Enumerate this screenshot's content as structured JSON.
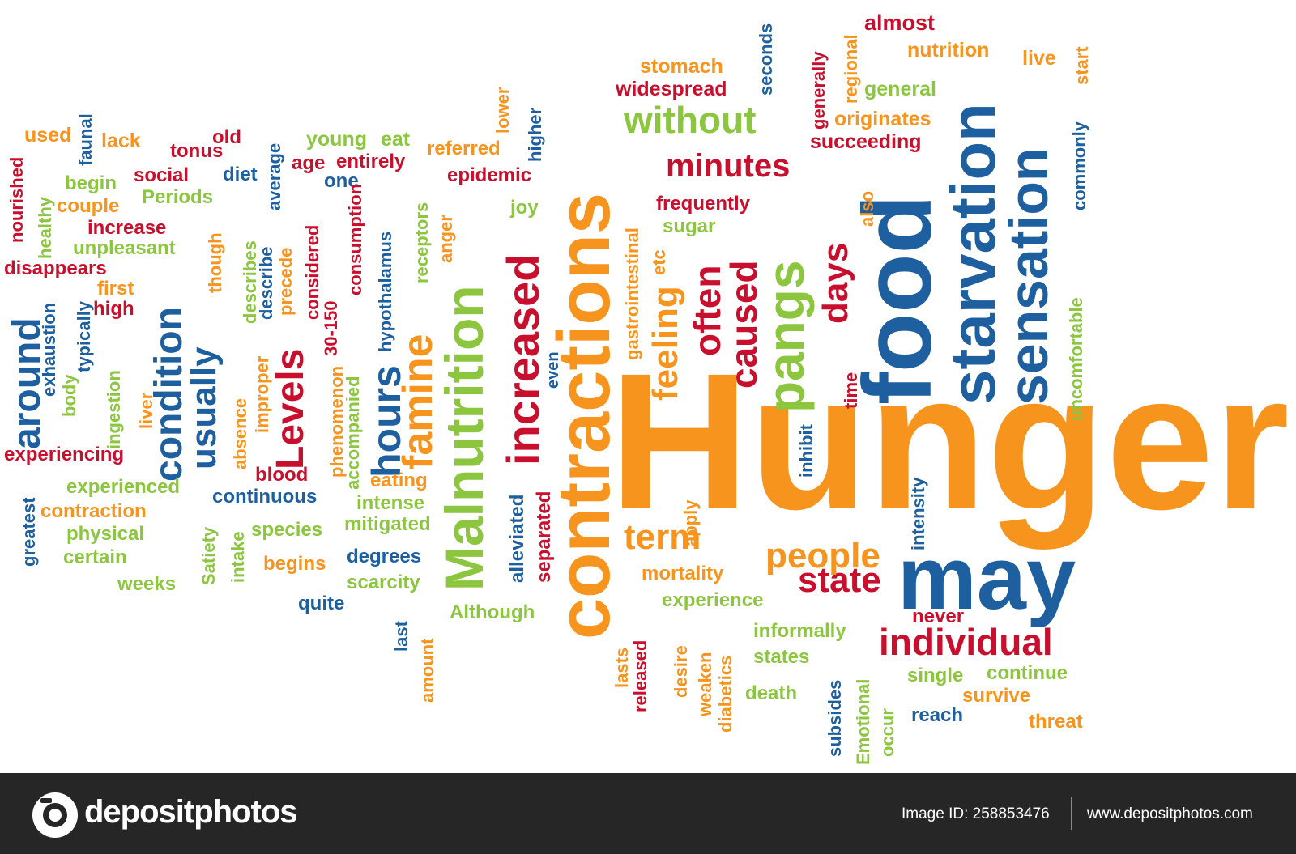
{
  "colors": {
    "orange": "#F7941D",
    "red": "#C8102E",
    "green": "#8CC63F",
    "blue": "#1E5F9F",
    "footer": "#262626"
  },
  "words": [
    {
      "t": "Hunger",
      "c": "orange"
    },
    {
      "t": "food",
      "c": "blue"
    },
    {
      "t": "may",
      "c": "blue"
    },
    {
      "t": "contractions",
      "c": "orange"
    },
    {
      "t": "Malnutrition",
      "c": "green"
    },
    {
      "t": "starvation",
      "c": "blue"
    },
    {
      "t": "sensation",
      "c": "blue"
    },
    {
      "t": "pangs",
      "c": "green"
    },
    {
      "t": "increased",
      "c": "red"
    },
    {
      "t": "famine",
      "c": "orange"
    },
    {
      "t": "hours",
      "c": "blue"
    },
    {
      "t": "Levels",
      "c": "red"
    },
    {
      "t": "condition",
      "c": "blue"
    },
    {
      "t": "usually",
      "c": "blue"
    },
    {
      "t": "around",
      "c": "blue"
    },
    {
      "t": "caused",
      "c": "red"
    },
    {
      "t": "often",
      "c": "red"
    },
    {
      "t": "feeling",
      "c": "orange"
    },
    {
      "t": "days",
      "c": "red"
    },
    {
      "t": "minutes",
      "c": "red"
    },
    {
      "t": "without",
      "c": "green"
    },
    {
      "t": "individual",
      "c": "red"
    },
    {
      "t": "state",
      "c": "red"
    },
    {
      "t": "people",
      "c": "orange"
    },
    {
      "t": "term",
      "c": "orange"
    },
    {
      "t": "almost",
      "c": "red"
    },
    {
      "t": "nutrition",
      "c": "orange"
    },
    {
      "t": "live",
      "c": "orange"
    },
    {
      "t": "general",
      "c": "green"
    },
    {
      "t": "originates",
      "c": "orange"
    },
    {
      "t": "succeeding",
      "c": "red"
    },
    {
      "t": "stomach",
      "c": "orange"
    },
    {
      "t": "widespread",
      "c": "red"
    },
    {
      "t": "frequently",
      "c": "red"
    },
    {
      "t": "sugar",
      "c": "green"
    },
    {
      "t": "epidemic",
      "c": "red"
    },
    {
      "t": "referred",
      "c": "orange"
    },
    {
      "t": "joy",
      "c": "green"
    },
    {
      "t": "young",
      "c": "green"
    },
    {
      "t": "eat",
      "c": "green"
    },
    {
      "t": "age",
      "c": "red"
    },
    {
      "t": "entirely",
      "c": "red"
    },
    {
      "t": "one",
      "c": "blue"
    },
    {
      "t": "diet",
      "c": "blue"
    },
    {
      "t": "old",
      "c": "red"
    },
    {
      "t": "tonus",
      "c": "red"
    },
    {
      "t": "social",
      "c": "red"
    },
    {
      "t": "used",
      "c": "orange"
    },
    {
      "t": "lack",
      "c": "orange"
    },
    {
      "t": "begin",
      "c": "green"
    },
    {
      "t": "couple",
      "c": "orange"
    },
    {
      "t": "Periods",
      "c": "green"
    },
    {
      "t": "increase",
      "c": "red"
    },
    {
      "t": "unpleasant",
      "c": "green"
    },
    {
      "t": "disappears",
      "c": "red"
    },
    {
      "t": "first",
      "c": "orange"
    },
    {
      "t": "high",
      "c": "red"
    },
    {
      "t": "experiencing",
      "c": "red"
    },
    {
      "t": "experienced",
      "c": "green"
    },
    {
      "t": "contraction",
      "c": "orange"
    },
    {
      "t": "physical",
      "c": "green"
    },
    {
      "t": "certain",
      "c": "green"
    },
    {
      "t": "weeks",
      "c": "green"
    },
    {
      "t": "blood",
      "c": "red"
    },
    {
      "t": "continuous",
      "c": "blue"
    },
    {
      "t": "eating",
      "c": "orange"
    },
    {
      "t": "intense",
      "c": "green"
    },
    {
      "t": "mitigated",
      "c": "green"
    },
    {
      "t": "species",
      "c": "green"
    },
    {
      "t": "begins",
      "c": "orange"
    },
    {
      "t": "degrees",
      "c": "blue"
    },
    {
      "t": "scarcity",
      "c": "green"
    },
    {
      "t": "quite",
      "c": "blue"
    },
    {
      "t": "Although",
      "c": "green"
    },
    {
      "t": "mortality",
      "c": "orange"
    },
    {
      "t": "experience",
      "c": "green"
    },
    {
      "t": "informally",
      "c": "green"
    },
    {
      "t": "states",
      "c": "green"
    },
    {
      "t": "death",
      "c": "green"
    },
    {
      "t": "never",
      "c": "red"
    },
    {
      "t": "single",
      "c": "green"
    },
    {
      "t": "continue",
      "c": "green"
    },
    {
      "t": "survive",
      "c": "orange"
    },
    {
      "t": "reach",
      "c": "blue"
    },
    {
      "t": "threat",
      "c": "orange"
    },
    {
      "t": "seconds",
      "c": "blue"
    },
    {
      "t": "generally",
      "c": "red"
    },
    {
      "t": "regional",
      "c": "orange"
    },
    {
      "t": "start",
      "c": "orange"
    },
    {
      "t": "commonly",
      "c": "blue"
    },
    {
      "t": "also",
      "c": "orange"
    },
    {
      "t": "uncomfortable",
      "c": "green"
    },
    {
      "t": "time",
      "c": "red"
    },
    {
      "t": "inhibit",
      "c": "blue"
    },
    {
      "t": "intensity",
      "c": "blue"
    },
    {
      "t": "apply",
      "c": "orange"
    },
    {
      "t": "etc",
      "c": "orange"
    },
    {
      "t": "gastrointestinal",
      "c": "orange"
    },
    {
      "t": "even",
      "c": "blue"
    },
    {
      "t": "alleviated",
      "c": "blue"
    },
    {
      "t": "separated",
      "c": "red"
    },
    {
      "t": "anger",
      "c": "orange"
    },
    {
      "t": "receptors",
      "c": "green"
    },
    {
      "t": "hypothalamus",
      "c": "blue"
    },
    {
      "t": "lower",
      "c": "orange"
    },
    {
      "t": "higher",
      "c": "blue"
    },
    {
      "t": "consumption",
      "c": "red"
    },
    {
      "t": "accompanied",
      "c": "green"
    },
    {
      "t": "30-150",
      "c": "red"
    },
    {
      "t": "phenomenon",
      "c": "orange"
    },
    {
      "t": "considered",
      "c": "red"
    },
    {
      "t": "precede",
      "c": "orange"
    },
    {
      "t": "describe",
      "c": "blue"
    },
    {
      "t": "average",
      "c": "blue"
    },
    {
      "t": "describes",
      "c": "green"
    },
    {
      "t": "improper",
      "c": "orange"
    },
    {
      "t": "absence",
      "c": "orange"
    },
    {
      "t": "intake",
      "c": "green"
    },
    {
      "t": "Satiety",
      "c": "green"
    },
    {
      "t": "though",
      "c": "orange"
    },
    {
      "t": "ingestion",
      "c": "green"
    },
    {
      "t": "liver",
      "c": "orange"
    },
    {
      "t": "typically",
      "c": "blue"
    },
    {
      "t": "body",
      "c": "green"
    },
    {
      "t": "exhaustion",
      "c": "blue"
    },
    {
      "t": "greatest",
      "c": "blue"
    },
    {
      "t": "faunal",
      "c": "blue"
    },
    {
      "t": "nourished",
      "c": "red"
    },
    {
      "t": "healthy",
      "c": "green"
    },
    {
      "t": "last",
      "c": "blue"
    },
    {
      "t": "amount",
      "c": "orange"
    },
    {
      "t": "lasts",
      "c": "orange"
    },
    {
      "t": "released",
      "c": "red"
    },
    {
      "t": "desire",
      "c": "orange"
    },
    {
      "t": "weaken",
      "c": "orange"
    },
    {
      "t": "diabetics",
      "c": "orange"
    },
    {
      "t": "subsides",
      "c": "blue"
    },
    {
      "t": "Emotional",
      "c": "green"
    },
    {
      "t": "occur",
      "c": "green"
    }
  ],
  "footer": {
    "logo_icon": "camera-aperture-icon",
    "brand": "depositphotos",
    "image_id": "Image ID: 258853476",
    "site": "www.depositphotos.com"
  }
}
